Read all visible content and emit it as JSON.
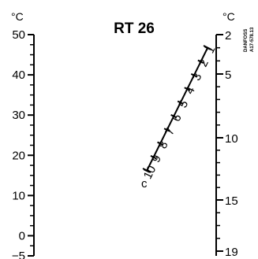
{
  "title": "RT 26",
  "vendor": {
    "brand": "DANFOSS",
    "code": "A17-578.13"
  },
  "left_scale": {
    "unit": "°C",
    "ticks": [
      {
        "value": 50,
        "label": "50"
      },
      {
        "value": 40,
        "label": "40"
      },
      {
        "value": 30,
        "label": "30"
      },
      {
        "value": 20,
        "label": "20"
      },
      {
        "value": 10,
        "label": "10"
      },
      {
        "value": 0,
        "label": "0"
      },
      {
        "value": -5,
        "label": "−5"
      }
    ]
  },
  "right_scale": {
    "unit": "°C",
    "ticks": [
      {
        "value": 2,
        "label": "2"
      },
      {
        "value": 5,
        "label": "5"
      },
      {
        "value": 10,
        "label": "10"
      },
      {
        "value": 15,
        "label": "15"
      },
      {
        "value": 19,
        "label": "19"
      }
    ]
  },
  "center_scale": {
    "letter": "c",
    "labels": [
      "1",
      "2",
      "3",
      "4",
      "5",
      "6",
      "7",
      "8",
      "9",
      "10"
    ]
  },
  "colors": {
    "ink": "#000000",
    "background": "#ffffff"
  }
}
